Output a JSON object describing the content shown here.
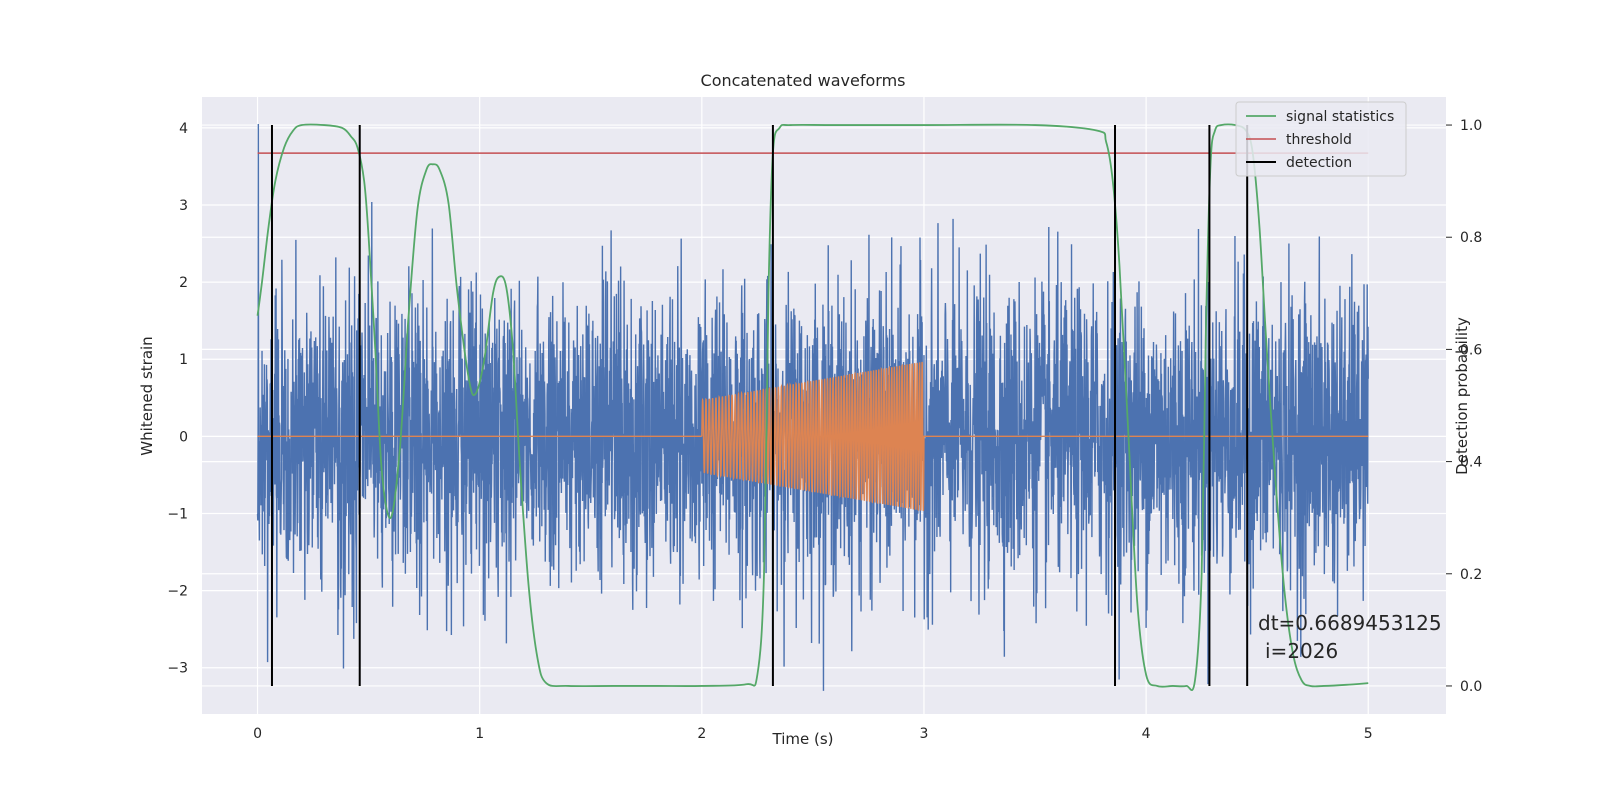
{
  "chart_data": {
    "type": "line",
    "title": "Concatenated waveforms",
    "xlabel": "Time (s)",
    "ylabel_left": "Whitened strain",
    "ylabel_right": "Detection probability",
    "xlim": [
      -0.25,
      5.35
    ],
    "ylim_left": [
      -3.6,
      4.4
    ],
    "ylim_right": [
      -0.05,
      1.05
    ],
    "x_ticks": [
      0,
      1,
      2,
      3,
      4,
      5
    ],
    "y_left_ticks": [
      -3,
      -2,
      -1,
      0,
      1,
      2,
      3,
      4
    ],
    "y_right_ticks": [
      "0.0",
      "0.2",
      "0.4",
      "0.6",
      "0.8",
      "1.0"
    ],
    "grid": true,
    "legend": {
      "position": "upper right",
      "entries": [
        {
          "label": "signal statistics",
          "color": "#55a868"
        },
        {
          "label": "threshold",
          "color": "#c44e52"
        },
        {
          "label": "detection",
          "color": "#000000"
        }
      ]
    },
    "noise_series": {
      "color": "#4c72b0",
      "x_range": [
        0,
        5
      ],
      "amplitude_typical": 1.0,
      "min": -3.3,
      "max": 4.05
    },
    "injection_series": {
      "color": "#dd8452",
      "baseline": 0,
      "x_start": 2.0,
      "x_end": 3.0,
      "amplitude_start": 0.47,
      "amplitude_end": 0.97,
      "cycles": 78
    },
    "threshold": {
      "value": 0.95,
      "x_range": [
        0,
        5
      ]
    },
    "signal_statistics": {
      "x": [
        0,
        0.02,
        0.05,
        0.08,
        0.12,
        0.16,
        0.2,
        0.3,
        0.38,
        0.42,
        0.45,
        0.48,
        0.5,
        0.53,
        0.56,
        0.6,
        0.64,
        0.68,
        0.72,
        0.76,
        0.79,
        0.82,
        0.86,
        0.9,
        0.95,
        0.98,
        1.02,
        1.06,
        1.09,
        1.12,
        1.15,
        1.18,
        1.22,
        1.26,
        1.3,
        1.4,
        1.6,
        1.8,
        2.0,
        2.2,
        2.25,
        2.28,
        2.3,
        2.32,
        2.35,
        2.4,
        2.6,
        3.0,
        3.5,
        3.78,
        3.82,
        3.85,
        3.88,
        3.92,
        3.96,
        4.0,
        4.05,
        4.12,
        4.18,
        4.22,
        4.25,
        4.27,
        4.29,
        4.31,
        4.34,
        4.4,
        4.45,
        4.48,
        4.51,
        4.54,
        4.58,
        4.62,
        4.66,
        4.7,
        4.74,
        4.8,
        4.9,
        5.0
      ],
      "y": [
        0.66,
        0.72,
        0.82,
        0.9,
        0.96,
        0.99,
        1.0,
        1.0,
        0.995,
        0.98,
        0.96,
        0.9,
        0.8,
        0.6,
        0.38,
        0.3,
        0.42,
        0.66,
        0.85,
        0.92,
        0.93,
        0.92,
        0.86,
        0.7,
        0.55,
        0.52,
        0.58,
        0.7,
        0.73,
        0.71,
        0.6,
        0.4,
        0.18,
        0.05,
        0.005,
        0.0,
        0.0,
        0.0,
        0.0,
        0.003,
        0.02,
        0.2,
        0.7,
        0.95,
        0.995,
        1.0,
        1.0,
        1.0,
        1.0,
        0.99,
        0.97,
        0.9,
        0.75,
        0.45,
        0.15,
        0.02,
        0.0,
        0.0,
        0.0,
        0.01,
        0.2,
        0.65,
        0.93,
        0.99,
        1.0,
        1.0,
        0.99,
        0.95,
        0.82,
        0.62,
        0.38,
        0.18,
        0.06,
        0.01,
        0.0,
        0.0,
        0.002,
        0.005
      ]
    },
    "detections": [
      0.065,
      0.46,
      2.32,
      3.86,
      4.285,
      4.455
    ],
    "annotation": [
      "dt=0.6689453125",
      "i=2026"
    ]
  }
}
